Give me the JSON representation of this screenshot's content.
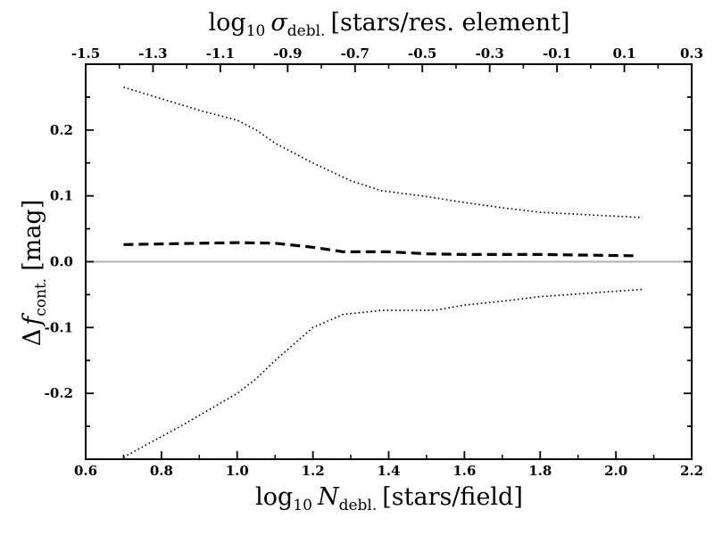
{
  "chart_data": {
    "type": "line",
    "title": "",
    "xlabel": {
      "prefix": "log",
      "sub1": "10",
      "var": "N",
      "sub2": "debl.",
      "unit": "[stars/field]"
    },
    "x2label": {
      "prefix": "log",
      "sub1": "10",
      "var": "σ",
      "sub2": "debl.",
      "unit": "[stars/res. element]"
    },
    "ylabel": {
      "prefix": "Δ",
      "var": "f",
      "sub2": "cont.",
      "unit": "[mag]"
    },
    "xlim": [
      0.6,
      2.2
    ],
    "x2lim": [
      -1.5,
      0.3
    ],
    "ylim": [
      -0.3,
      0.3
    ],
    "xticks": [
      0.6,
      0.8,
      1.0,
      1.2,
      1.4,
      1.6,
      1.8,
      2.0,
      2.2
    ],
    "xtick_labels": [
      "0.6",
      "0.8",
      "1.0",
      "1.2",
      "1.4",
      "1.6",
      "1.8",
      "2.0",
      "2.2"
    ],
    "x2ticks": [
      -1.5,
      -1.3,
      -1.1,
      -0.9,
      -0.7,
      -0.5,
      -0.3,
      -0.1,
      0.1,
      0.3
    ],
    "x2tick_labels": [
      "-1.5",
      "-1.3",
      "-1.1",
      "-0.9",
      "-0.7",
      "-0.5",
      "-0.3",
      "-0.1",
      "0.1",
      "0.3"
    ],
    "yticks": [
      -0.2,
      -0.1,
      0.0,
      0.1,
      0.2
    ],
    "ytick_labels": [
      "-0.2",
      "-0.1",
      "0.0",
      "0.1",
      "0.2"
    ],
    "zero_line": {
      "y": 0.0,
      "color": "#b0b0b0"
    },
    "series": [
      {
        "name": "mean",
        "style": "dashed",
        "color": "#000000",
        "x": [
          0.7,
          1.0,
          1.1,
          1.2,
          1.28,
          1.4,
          1.5,
          1.6,
          1.8,
          2.06
        ],
        "y": [
          0.026,
          0.029,
          0.028,
          0.022,
          0.015,
          0.015,
          0.012,
          0.011,
          0.011,
          0.009
        ]
      },
      {
        "name": "upper",
        "style": "dotted",
        "color": "#000000",
        "x": [
          0.7,
          0.9,
          1.0,
          1.05,
          1.1,
          1.2,
          1.3,
          1.38,
          1.5,
          1.6,
          1.7,
          1.8,
          1.9,
          2.07
        ],
        "y": [
          0.265,
          0.23,
          0.215,
          0.2,
          0.18,
          0.15,
          0.123,
          0.108,
          0.099,
          0.09,
          0.082,
          0.075,
          0.072,
          0.067
        ]
      },
      {
        "name": "lower",
        "style": "dotted",
        "color": "#000000",
        "x": [
          0.7,
          0.85,
          1.0,
          1.05,
          1.1,
          1.2,
          1.28,
          1.38,
          1.52,
          1.6,
          1.7,
          1.8,
          1.9,
          2.07
        ],
        "y": [
          -0.297,
          -0.25,
          -0.2,
          -0.178,
          -0.15,
          -0.1,
          -0.08,
          -0.074,
          -0.074,
          -0.066,
          -0.06,
          -0.053,
          -0.049,
          -0.042
        ]
      }
    ]
  }
}
